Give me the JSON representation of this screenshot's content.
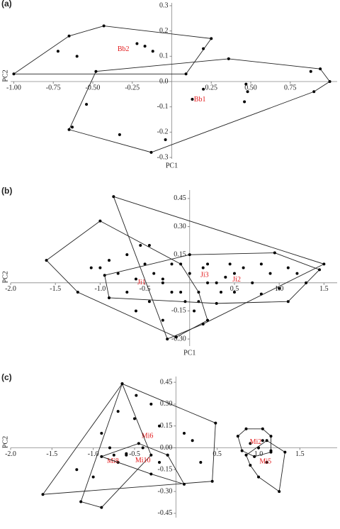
{
  "chart_data": [
    {
      "type": "scatter",
      "title": "(a)",
      "xlabel": "PC1",
      "ylabel": "PC2",
      "label_color": "#e31a1c",
      "xlim": [
        -1.02,
        1.02
      ],
      "ylim": [
        -0.3,
        0.3
      ],
      "xticks": [
        {
          "value": -1,
          "label": "-1.00"
        },
        -0.75,
        {
          "value": -0.5,
          "label": "-0.50"
        },
        -0.25,
        0.25,
        {
          "value": 0.5,
          "label": "0.50"
        },
        0.75
      ],
      "yticks": [
        0.3,
        0.2,
        0.1,
        {
          "value": 0,
          "label": "0.0"
        },
        -0.1,
        -0.2,
        -0.3
      ],
      "series": [
        {
          "name": "Bb2",
          "color": "#000000",
          "x": [
            -1.0,
            -0.65,
            -0.43,
            0.25,
            0.09,
            -0.72,
            -0.6,
            -0.22,
            -0.17,
            -0.12,
            0.2
          ],
          "y": [
            0.03,
            0.18,
            0.22,
            0.17,
            0.03,
            0.12,
            0.1,
            0.15,
            0.14,
            0.12,
            0.13
          ]
        },
        {
          "name": "Bb1",
          "color": "#000000",
          "x": [
            -0.48,
            0.36,
            0.94,
            1.0,
            0.9,
            -0.04,
            -0.13,
            -0.63,
            -0.54,
            -0.65,
            -0.33,
            0.13,
            0.2,
            0.47,
            0.48,
            0.46,
            0.88
          ],
          "y": [
            0.04,
            0.09,
            0.05,
            0.0,
            -0.04,
            -0.23,
            -0.28,
            -0.18,
            -0.09,
            -0.19,
            -0.21,
            -0.07,
            -0.03,
            -0.01,
            -0.04,
            -0.08,
            0.04
          ]
        }
      ]
    },
    {
      "type": "scatter",
      "title": "(b)",
      "xlabel": "PC1",
      "ylabel": "PC2",
      "label_color": "#e31a1c",
      "xlim": [
        -2.0,
        1.6
      ],
      "ylim": [
        -0.33,
        0.48
      ],
      "xticks": [
        {
          "value": -2,
          "label": "-2.0"
        },
        -1.5,
        {
          "value": -1,
          "label": "-1.0"
        },
        -0.5,
        0.5,
        {
          "value": 1,
          "label": "1.0"
        },
        1.5
      ],
      "yticks": [
        0.45,
        {
          "value": 0.3,
          "label": "0.30"
        },
        0.15,
        -0.15,
        {
          "value": -0.3,
          "label": "-0.30"
        }
      ],
      "series": [
        {
          "name": "Ji1",
          "color": "#000000",
          "x": [
            -1.6,
            -1.0,
            -0.55,
            0.2,
            -0.15,
            -0.6,
            -1.25,
            -1.1,
            -1.0,
            -0.8,
            -0.7,
            -0.6,
            -0.5,
            -0.4,
            -0.3,
            -0.2,
            -0.1,
            -0.05,
            0.05,
            -0.7,
            -0.3,
            0.1,
            -0.9,
            -0.45
          ],
          "y": [
            0.12,
            0.33,
            0.2,
            -0.2,
            -0.29,
            -0.15,
            -0.05,
            0.08,
            0.08,
            0.05,
            0.15,
            0.02,
            0.1,
            0.05,
            0.0,
            -0.05,
            0.1,
            -0.1,
            -0.15,
            -0.05,
            -0.2,
            -0.05,
            0.12,
            -0.1
          ]
        },
        {
          "name": "Ji3",
          "color": "#000000",
          "x": [
            -0.85,
            1.5,
            0.15,
            -0.25,
            -0.45,
            0.0,
            -0.2,
            0.1,
            0.3,
            0.5,
            0.8,
            1.1,
            -0.1,
            0.2,
            -0.3
          ],
          "y": [
            0.46,
            0.1,
            -0.22,
            -0.3,
            0.2,
            0.05,
            0.1,
            -0.1,
            0.0,
            0.05,
            0.1,
            0.08,
            -0.05,
            0.1,
            0.02
          ]
        },
        {
          "name": "Ji2",
          "color": "#000000",
          "x": [
            -0.95,
            0.0,
            0.95,
            1.45,
            1.1,
            0.3,
            -0.9,
            0.2,
            0.4,
            0.5,
            0.6,
            0.7,
            0.9,
            1.0,
            1.2,
            0.45,
            0.35,
            0.8,
            0.15,
            1.3
          ],
          "y": [
            0.04,
            0.15,
            0.16,
            0.07,
            -0.1,
            -0.11,
            -0.08,
            0.0,
            0.03,
            -0.05,
            0.08,
            0.0,
            0.05,
            -0.03,
            0.05,
            0.1,
            -0.05,
            -0.06,
            0.08,
            0.0
          ]
        }
      ]
    },
    {
      "type": "scatter",
      "title": "(c)",
      "ylabel": "PC2",
      "label_color": "#e31a1c",
      "xlim": [
        -2.0,
        1.9
      ],
      "ylim": [
        -0.47,
        0.47
      ],
      "xticks": [
        {
          "value": -2,
          "label": "-2.0"
        },
        -1.5,
        {
          "value": -1,
          "label": "-1.0"
        },
        -0.5,
        0.5,
        {
          "value": 1,
          "label": "1.0"
        },
        1.5
      ],
      "yticks": [
        0.45,
        {
          "value": 0.3,
          "label": "0.30"
        },
        0.15,
        {
          "value": 0,
          "label": "0.00"
        },
        -0.15,
        {
          "value": -0.3,
          "label": "-0.30"
        },
        -0.45
      ],
      "series": [
        {
          "name": "Mi6",
          "color": "#000000",
          "x": [
            -1.61,
            -0.65,
            -0.48,
            0.48,
            0.44,
            -0.1,
            -0.9,
            -0.7,
            -0.5,
            -0.3,
            -0.2,
            0.1,
            0.2,
            -0.4,
            0.3,
            -1.2
          ],
          "y": [
            -0.32,
            0.44,
            0.36,
            0.17,
            -0.23,
            -0.05,
            0.1,
            0.25,
            0.2,
            0.3,
            0.15,
            0.1,
            0.05,
            0.0,
            -0.1,
            -0.15
          ]
        },
        {
          "name": "Mi8",
          "color": "#000000",
          "x": [
            -1.15,
            -0.9,
            -0.65,
            -0.3,
            -0.7,
            -0.8,
            -1.0,
            -0.6
          ],
          "y": [
            -0.37,
            -0.41,
            0.44,
            -0.05,
            -0.1,
            0.0,
            -0.2,
            -0.05
          ]
        },
        {
          "name": "Mi10",
          "color": "#000000",
          "x": [
            -0.9,
            -0.45,
            -0.2,
            0.1,
            -0.3,
            -0.6,
            -0.1,
            -0.75
          ],
          "y": [
            -0.06,
            0.03,
            -0.1,
            -0.25,
            -0.18,
            -0.04,
            -0.05,
            -0.05
          ]
        },
        {
          "name": "Mi2",
          "color": "#000000",
          "x": [
            0.75,
            0.85,
            1.05,
            1.15,
            1.15,
            0.95,
            0.8,
            0.9,
            1.0,
            1.05
          ],
          "y": [
            0.08,
            0.13,
            0.13,
            0.08,
            -0.03,
            -0.06,
            -0.02,
            0.03,
            0.0,
            0.05
          ]
        },
        {
          "name": "Mi5",
          "color": "#000000",
          "x": [
            0.85,
            1.1,
            1.32,
            1.25,
            1.0,
            0.9,
            1.1,
            1.15
          ],
          "y": [
            -0.05,
            0.05,
            -0.03,
            -0.3,
            -0.2,
            -0.12,
            -0.1,
            -0.02
          ]
        }
      ]
    }
  ]
}
